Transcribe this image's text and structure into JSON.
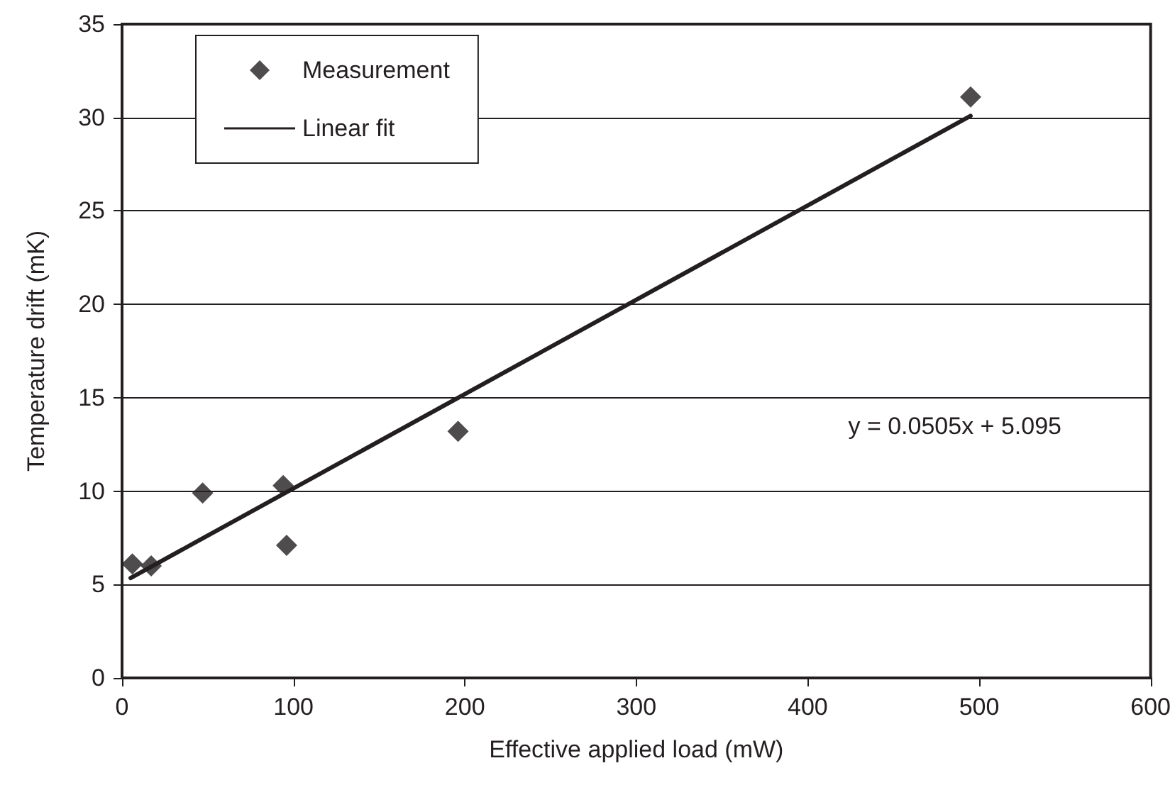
{
  "chart_data": {
    "type": "scatter",
    "xlabel": "Effective applied load (mW)",
    "ylabel": "Temperature drift (mK)",
    "xlim": [
      0,
      600
    ],
    "xticks": [
      0,
      100,
      200,
      300,
      400,
      500,
      600
    ],
    "ylim": [
      0,
      35
    ],
    "yticks": [
      0,
      5,
      10,
      15,
      20,
      25,
      30,
      35
    ],
    "grid": "y",
    "legend": "top left",
    "annotations": [
      "y = 0.0505x + 5.095"
    ],
    "series": [
      {
        "name": "Measurement",
        "marker": "diamond",
        "color": "#231f20",
        "x": [
          6,
          17,
          47,
          94,
          96,
          196,
          495
        ],
        "values": [
          6.1,
          6.0,
          9.9,
          10.3,
          7.1,
          13.2,
          31.1
        ]
      },
      {
        "name": "Linear fit",
        "type": "line",
        "marker": "none",
        "line_style": "solid",
        "color": "#231f20",
        "x": [
          5,
          495
        ],
        "values": [
          5.35,
          30.09
        ]
      }
    ]
  }
}
